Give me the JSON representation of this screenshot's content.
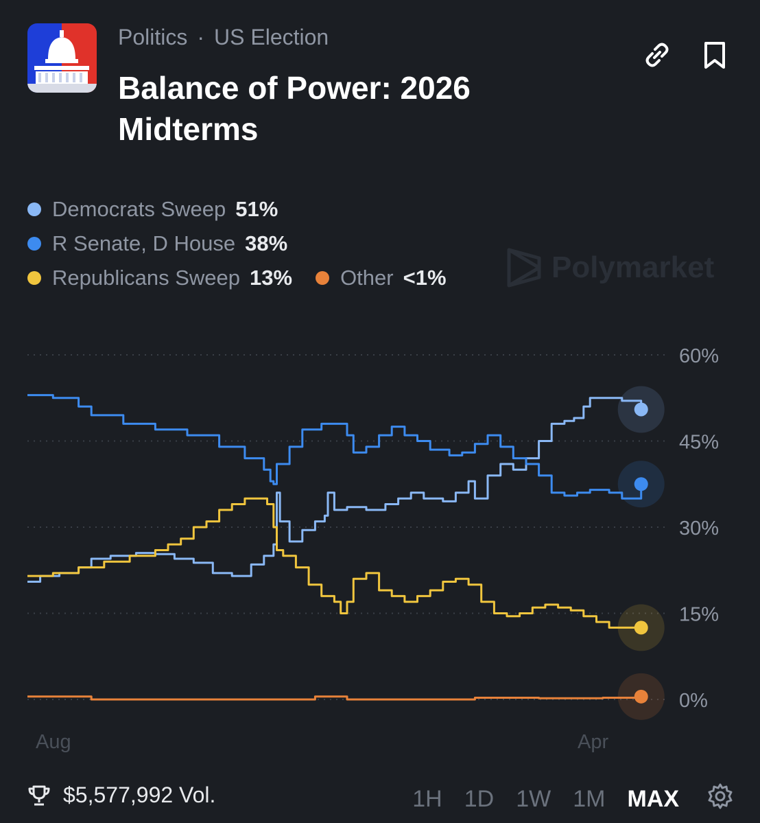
{
  "header": {
    "breadcrumb": [
      "Politics",
      "US Election"
    ],
    "breadcrumb_separator": "·",
    "title": "Balance of Power: 2026 Midterms",
    "icons": [
      "link-icon",
      "bookmark-icon"
    ]
  },
  "watermark": "Polymarket",
  "legend": [
    {
      "name": "Democrats Sweep",
      "value": "51%",
      "color": "#8ab8f5"
    },
    {
      "name": "R Senate, D House",
      "value": "38%",
      "color": "#3d8bef"
    },
    {
      "name": "Republicans Sweep",
      "value": "13%",
      "color": "#f0c53e"
    },
    {
      "name": "Other",
      "value": "<1%",
      "color": "#e8823a"
    }
  ],
  "chart_data": {
    "type": "line",
    "x_labels": [
      "Aug",
      "Apr"
    ],
    "y_ticks": [
      "60%",
      "45%",
      "30%",
      "15%",
      "0%"
    ],
    "ylim": [
      0,
      60
    ],
    "grid": true,
    "series": [
      {
        "name": "Democrats Sweep",
        "color": "#8ab8f5",
        "points": [
          [
            0,
            20.5
          ],
          [
            0.02,
            21.5
          ],
          [
            0.05,
            22
          ],
          [
            0.08,
            23
          ],
          [
            0.1,
            24.5
          ],
          [
            0.13,
            25
          ],
          [
            0.17,
            25.5
          ],
          [
            0.2,
            25.3
          ],
          [
            0.23,
            24.5
          ],
          [
            0.26,
            23.8
          ],
          [
            0.29,
            22
          ],
          [
            0.32,
            21.5
          ],
          [
            0.35,
            23.5
          ],
          [
            0.37,
            25
          ],
          [
            0.385,
            27
          ],
          [
            0.39,
            36
          ],
          [
            0.395,
            31
          ],
          [
            0.41,
            27.5
          ],
          [
            0.43,
            29.5
          ],
          [
            0.45,
            31
          ],
          [
            0.465,
            32
          ],
          [
            0.47,
            36
          ],
          [
            0.48,
            33
          ],
          [
            0.5,
            33.5
          ],
          [
            0.53,
            33
          ],
          [
            0.56,
            34
          ],
          [
            0.58,
            35
          ],
          [
            0.6,
            36
          ],
          [
            0.62,
            35
          ],
          [
            0.65,
            34.5
          ],
          [
            0.67,
            36
          ],
          [
            0.69,
            38
          ],
          [
            0.7,
            35
          ],
          [
            0.72,
            39
          ],
          [
            0.74,
            41
          ],
          [
            0.76,
            40
          ],
          [
            0.78,
            42
          ],
          [
            0.8,
            45
          ],
          [
            0.82,
            48
          ],
          [
            0.84,
            48.5
          ],
          [
            0.855,
            49
          ],
          [
            0.87,
            51
          ],
          [
            0.88,
            52.5
          ],
          [
            0.9,
            52.5
          ],
          [
            0.93,
            52
          ],
          [
            0.96,
            50.5
          ]
        ]
      },
      {
        "name": "R Senate, D House",
        "color": "#3d8bef",
        "points": [
          [
            0,
            53
          ],
          [
            0.04,
            52.5
          ],
          [
            0.08,
            51
          ],
          [
            0.1,
            49.5
          ],
          [
            0.15,
            48
          ],
          [
            0.2,
            47
          ],
          [
            0.25,
            46
          ],
          [
            0.3,
            44
          ],
          [
            0.34,
            42
          ],
          [
            0.37,
            40
          ],
          [
            0.38,
            38
          ],
          [
            0.385,
            37.5
          ],
          [
            0.39,
            41
          ],
          [
            0.41,
            44
          ],
          [
            0.43,
            47
          ],
          [
            0.46,
            48
          ],
          [
            0.48,
            48
          ],
          [
            0.5,
            46
          ],
          [
            0.51,
            43
          ],
          [
            0.53,
            44
          ],
          [
            0.55,
            46
          ],
          [
            0.57,
            47.5
          ],
          [
            0.59,
            46
          ],
          [
            0.61,
            45
          ],
          [
            0.63,
            43.5
          ],
          [
            0.66,
            42.5
          ],
          [
            0.68,
            43
          ],
          [
            0.7,
            44.5
          ],
          [
            0.72,
            46
          ],
          [
            0.74,
            44
          ],
          [
            0.76,
            42
          ],
          [
            0.78,
            41
          ],
          [
            0.8,
            39
          ],
          [
            0.82,
            36
          ],
          [
            0.84,
            35.5
          ],
          [
            0.86,
            36
          ],
          [
            0.88,
            36.5
          ],
          [
            0.91,
            36
          ],
          [
            0.93,
            35
          ],
          [
            0.96,
            37.5
          ]
        ]
      },
      {
        "name": "Republicans Sweep",
        "color": "#f0c53e",
        "points": [
          [
            0,
            21.5
          ],
          [
            0.04,
            22
          ],
          [
            0.08,
            23
          ],
          [
            0.12,
            24
          ],
          [
            0.16,
            25
          ],
          [
            0.2,
            26
          ],
          [
            0.22,
            27
          ],
          [
            0.24,
            28
          ],
          [
            0.26,
            30
          ],
          [
            0.28,
            31
          ],
          [
            0.3,
            33
          ],
          [
            0.32,
            34
          ],
          [
            0.34,
            35
          ],
          [
            0.36,
            35
          ],
          [
            0.375,
            34
          ],
          [
            0.385,
            30
          ],
          [
            0.39,
            26
          ],
          [
            0.4,
            25
          ],
          [
            0.42,
            23
          ],
          [
            0.44,
            20
          ],
          [
            0.46,
            18
          ],
          [
            0.48,
            17
          ],
          [
            0.49,
            15
          ],
          [
            0.5,
            17
          ],
          [
            0.51,
            21
          ],
          [
            0.53,
            22
          ],
          [
            0.55,
            19
          ],
          [
            0.57,
            18
          ],
          [
            0.59,
            17
          ],
          [
            0.61,
            18
          ],
          [
            0.63,
            19
          ],
          [
            0.65,
            20.5
          ],
          [
            0.67,
            21
          ],
          [
            0.69,
            20
          ],
          [
            0.71,
            17
          ],
          [
            0.73,
            15
          ],
          [
            0.75,
            14.5
          ],
          [
            0.77,
            15
          ],
          [
            0.79,
            16
          ],
          [
            0.81,
            16.5
          ],
          [
            0.83,
            16
          ],
          [
            0.85,
            15.5
          ],
          [
            0.87,
            14.5
          ],
          [
            0.89,
            13.5
          ],
          [
            0.91,
            12.5
          ],
          [
            0.93,
            12.5
          ],
          [
            0.96,
            12.5
          ]
        ]
      },
      {
        "name": "Other",
        "color": "#e8823a",
        "points": [
          [
            0,
            0.5
          ],
          [
            0.1,
            0
          ],
          [
            0.2,
            0
          ],
          [
            0.3,
            0
          ],
          [
            0.4,
            0
          ],
          [
            0.45,
            0.5
          ],
          [
            0.5,
            0
          ],
          [
            0.6,
            0
          ],
          [
            0.7,
            0.3
          ],
          [
            0.8,
            0.2
          ],
          [
            0.9,
            0.3
          ],
          [
            0.96,
            0.5
          ]
        ]
      }
    ]
  },
  "footer": {
    "volume": "$5,577,992 Vol.",
    "ranges": [
      "1H",
      "1D",
      "1W",
      "1M",
      "MAX"
    ],
    "active_range": "MAX"
  }
}
